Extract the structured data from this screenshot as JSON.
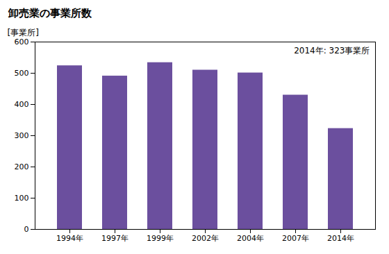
{
  "chart_data": {
    "type": "bar",
    "title": "卸売業の事業所数",
    "ylabel": "[事業所]",
    "annotation": "2014年: 323事業所",
    "categories": [
      "1994年",
      "1997年",
      "1999年",
      "2002年",
      "2004年",
      "2007年",
      "2014年"
    ],
    "values": [
      524,
      491,
      534,
      510,
      501,
      430,
      323
    ],
    "color": "#6B4F9E",
    "ylim": [
      0,
      600
    ],
    "yticks": [
      0,
      100,
      200,
      300,
      400,
      500,
      600
    ],
    "grid": false
  }
}
